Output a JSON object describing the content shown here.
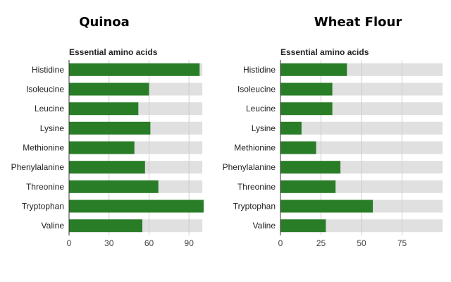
{
  "chart_data": [
    {
      "type": "bar",
      "orientation": "horizontal",
      "title": "Quinoa",
      "subtitle": "Essential amino acids",
      "categories": [
        "Histidine",
        "Isoleucine",
        "Leucine",
        "Lysine",
        "Methionine",
        "Phenylalanine",
        "Threonine",
        "Tryptophan",
        "Valine"
      ],
      "values": [
        98,
        60,
        52,
        61,
        49,
        57,
        67,
        101,
        55
      ],
      "background_max": 100,
      "xlim": [
        0,
        101
      ],
      "xticks": [
        0,
        30,
        60,
        90
      ],
      "grid": true,
      "bar_color": "#2a7d27",
      "track_color": "#e0e0e0"
    },
    {
      "type": "bar",
      "orientation": "horizontal",
      "title": "Wheat Flour",
      "subtitle": "Essential amino acids",
      "categories": [
        "Histidine",
        "Isoleucine",
        "Leucine",
        "Lysine",
        "Methionine",
        "Phenylalanine",
        "Threonine",
        "Tryptophan",
        "Valine"
      ],
      "values": [
        41,
        32,
        32,
        13,
        22,
        37,
        34,
        57,
        28
      ],
      "background_max": 100,
      "xlim": [
        0,
        100
      ],
      "xticks": [
        0,
        25,
        50,
        75
      ],
      "grid": true,
      "bar_color": "#2a7d27",
      "track_color": "#e0e0e0"
    }
  ]
}
